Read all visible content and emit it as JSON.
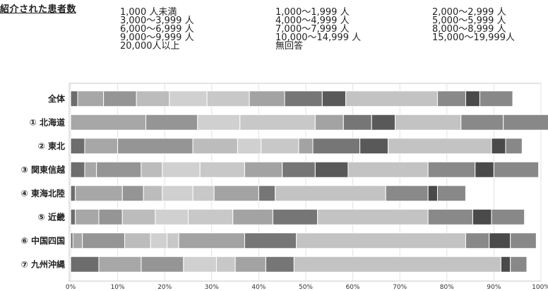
{
  "title": "紹介された患者数",
  "colors": [
    "#6d6d6d",
    "#a7a7a7",
    "#959595",
    "#bcbcbc",
    "#d0d0d0",
    "#c8c8c8",
    "#a3a3a3",
    "#767676",
    "#595959",
    "#c3c3c3",
    "#898989",
    "#4a4a4a",
    "#888888"
  ],
  "chart_data": {
    "type": "bar",
    "orientation": "horizontal",
    "stacked": true,
    "normalized": true,
    "title": "紹介された患者数",
    "xlabel": "",
    "ylabel": "",
    "xlim": [
      0,
      100
    ],
    "x_ticks": [
      "0%",
      "10%",
      "20%",
      "30%",
      "40%",
      "50%",
      "60%",
      "70%",
      "80%",
      "90%",
      "100%"
    ],
    "categories": [
      "全体",
      "① 北海道",
      "② 東北",
      "③ 関東信越",
      "④ 東海北陸",
      "⑤ 近畿",
      "⑥ 中国四国",
      "⑦ 九州沖縄"
    ],
    "series": [
      {
        "name": "1,000 人未満",
        "values": [
          1.5,
          0,
          3,
          3,
          1,
          1,
          0.5,
          6
        ]
      },
      {
        "name": "1,000～1,999 人",
        "values": [
          5.5,
          16,
          7,
          2.5,
          10,
          5,
          2,
          9
        ]
      },
      {
        "name": "2,000～2,999 人",
        "values": [
          7,
          11,
          16,
          9.5,
          4.5,
          5,
          9,
          9
        ]
      },
      {
        "name": "3,000～3,999 人",
        "values": [
          7,
          0,
          9.5,
          4.5,
          4,
          7,
          5.5,
          0
        ]
      },
      {
        "name": "4,000～4,999 人",
        "values": [
          8,
          9,
          5,
          8,
          6.5,
          7,
          3.5,
          7
        ]
      },
      {
        "name": "5,000～5,999 人",
        "values": [
          9,
          16,
          8,
          9.5,
          4.5,
          9.5,
          2.5,
          4
        ]
      },
      {
        "name": "6,000～6,999 人",
        "values": [
          7.5,
          6,
          3,
          8,
          9.5,
          8.5,
          14,
          6.5
        ]
      },
      {
        "name": "7,000～7,999 人",
        "values": [
          8,
          6,
          10,
          7,
          3.5,
          9.5,
          11,
          6
        ]
      },
      {
        "name": "8,000～8,999 人",
        "values": [
          5,
          5,
          6,
          7,
          0,
          0,
          0,
          0
        ]
      },
      {
        "name": "9,000～9,999 人",
        "values": [
          19.5,
          14,
          22,
          17,
          23.5,
          23.5,
          36,
          44
        ]
      },
      {
        "name": "10,000～14,999 人",
        "values": [
          6,
          9,
          0,
          10,
          9,
          9.5,
          5,
          0
        ]
      },
      {
        "name": "15,000～19,999人",
        "values": [
          3,
          0,
          3,
          4,
          2,
          4,
          4.5,
          2
        ]
      },
      {
        "name": "20,000人以上",
        "values": [
          7,
          11,
          3.5,
          9.5,
          6,
          7,
          5.5,
          3.5
        ]
      },
      {
        "name": "無回答",
        "values": [
          0,
          0,
          0,
          0,
          0,
          0,
          0,
          0
        ]
      }
    ]
  }
}
